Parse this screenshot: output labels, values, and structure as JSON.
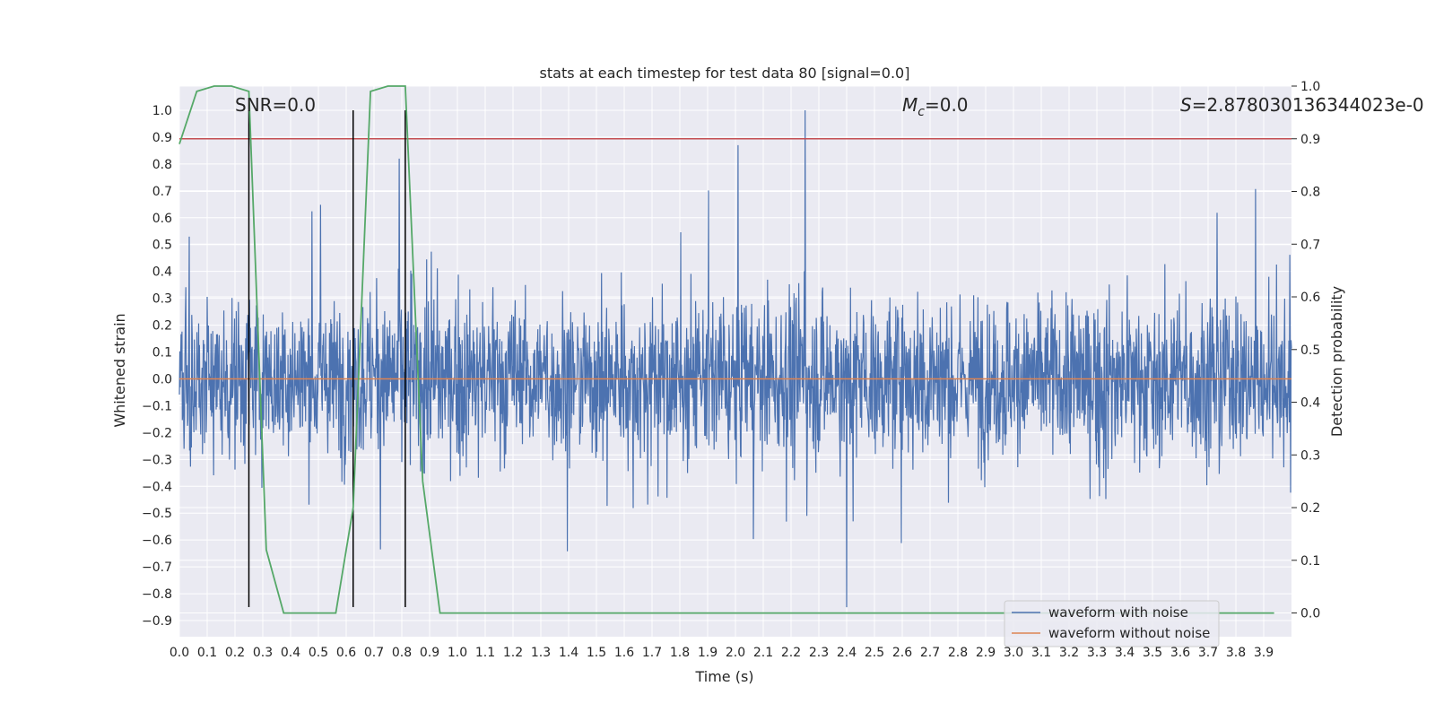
{
  "chart_data": {
    "type": "line",
    "title": "stats at each timestep for test data 80 [signal=0.0]",
    "xlabel": "Time (s)",
    "ylabel": "Whitened strain",
    "y2label": "Detection probability",
    "xlim": [
      0.0,
      4.0
    ],
    "ylim": [
      -0.96,
      1.09
    ],
    "y2lim": [
      -0.045,
      1.0
    ],
    "xticks": [
      0.0,
      0.1,
      0.2,
      0.3,
      0.4,
      0.5,
      0.6,
      0.7,
      0.8,
      0.9,
      1.0,
      1.1,
      1.2,
      1.3,
      1.4,
      1.5,
      1.6,
      1.7,
      1.8,
      1.9,
      2.0,
      2.1,
      2.2,
      2.3,
      2.4,
      2.5,
      2.6,
      2.7,
      2.8,
      2.9,
      3.0,
      3.1,
      3.2,
      3.3,
      3.4,
      3.5,
      3.6,
      3.7,
      3.8,
      3.9
    ],
    "xtick_labels": [
      "0.0",
      "0.1",
      "0.2",
      "0.3",
      "0.4",
      "0.5",
      "0.6",
      "0.7",
      "0.8",
      "0.9",
      "1.0",
      "1.1",
      "1.2",
      "1.3",
      "1.4",
      "1.5",
      "1.6",
      "1.7",
      "1.8",
      "1.9",
      "2.0",
      "2.1",
      "2.2",
      "2.3",
      "2.4",
      "2.5",
      "2.6",
      "2.7",
      "2.8",
      "2.9",
      "3.0",
      "3.1",
      "3.2",
      "3.3",
      "3.4",
      "3.5",
      "3.6",
      "3.7",
      "3.8",
      "3.9"
    ],
    "yticks": [
      1.0,
      0.9,
      0.8,
      0.7,
      0.6,
      0.5,
      0.4,
      0.3,
      0.2,
      0.1,
      0.0,
      -0.1,
      -0.2,
      -0.3,
      -0.4,
      -0.5,
      -0.6,
      -0.7,
      -0.8,
      -0.9
    ],
    "ytick_labels": [
      "1.0",
      "0.9",
      "0.8",
      "0.7",
      "0.6",
      "0.5",
      "0.4",
      "0.3",
      "0.2",
      "0.1",
      "0.0",
      "−0.1",
      "−0.2",
      "−0.3",
      "−0.4",
      "−0.5",
      "−0.6",
      "−0.7",
      "−0.8",
      "−0.9"
    ],
    "y2ticks": [
      1.0,
      0.9,
      0.8,
      0.7,
      0.6,
      0.5,
      0.4,
      0.3,
      0.2,
      0.1,
      0.0
    ],
    "y2tick_labels": [
      "1.0",
      "0.9",
      "0.8",
      "0.7",
      "0.6",
      "0.5",
      "0.4",
      "0.3",
      "0.2",
      "0.1",
      "0.0"
    ],
    "grid": true,
    "annotations": {
      "snr": "SNR=0.0",
      "mc_symbol": "M",
      "mc_sub": "c",
      "mc_value": "=0.0",
      "s_symbol": "S",
      "s_value": "=2.878030136344023e-0"
    },
    "series": [
      {
        "name": "waveform with noise",
        "axis": "left",
        "color": "#4c72b0",
        "description": "noisy whitened strain, peak 1.0 near t=2.25 s, min about -0.85 near t=2.4 s",
        "amplitude_envelope": [
          -0.85,
          1.0
        ]
      },
      {
        "name": "waveform without noise",
        "axis": "left",
        "color": "#dd8452",
        "x": [
          0.0,
          4.0
        ],
        "y": [
          0.0,
          0.0
        ]
      },
      {
        "name": "detection probability",
        "axis": "right",
        "color": "#55a868",
        "x": [
          0.0,
          0.0625,
          0.125,
          0.1875,
          0.25,
          0.3125,
          0.375,
          0.4375,
          0.5,
          0.5625,
          0.625,
          0.6875,
          0.75,
          0.8125,
          0.875,
          0.9375,
          1.0,
          1.5,
          2.0,
          2.5,
          3.0,
          3.5,
          3.9375
        ],
        "y": [
          0.89,
          0.99,
          1.0,
          1.0,
          0.99,
          0.12,
          0.0,
          0.0,
          0.0,
          0.0,
          0.2,
          0.99,
          1.0,
          1.0,
          0.25,
          0.0,
          0.0,
          0.0,
          0.0,
          0.0,
          0.0,
          0.0,
          0.0
        ]
      },
      {
        "name": "threshold",
        "axis": "right",
        "color": "#c44e52",
        "x": [
          0.0,
          4.0
        ],
        "y": [
          0.9,
          0.9
        ]
      }
    ],
    "vlines": {
      "color": "#000000",
      "x": [
        0.25,
        0.625,
        0.8125
      ],
      "y_range": [
        -0.85,
        1.0
      ]
    },
    "legend": {
      "location": "lower right",
      "entries": [
        "waveform with noise",
        "waveform without noise"
      ]
    },
    "colors": {
      "background": "#eaeaf2",
      "grid": "#ffffff",
      "noise": "#4c72b0",
      "clean": "#dd8452",
      "prob": "#55a868",
      "threshold": "#c44e52"
    }
  }
}
